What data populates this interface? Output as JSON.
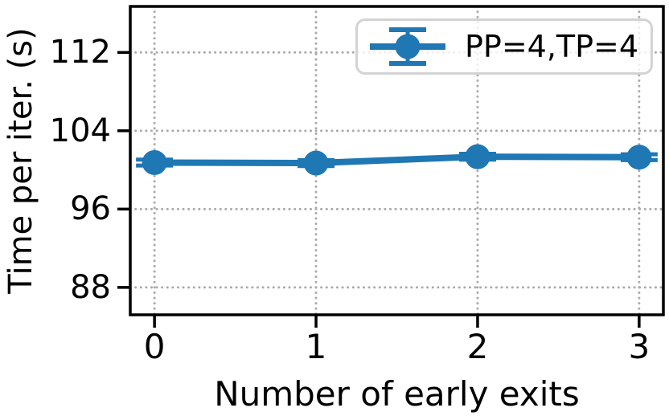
{
  "figure": {
    "background": "#ffffff",
    "text_color": "#000000",
    "spine_color": "#000000"
  },
  "chart_data": {
    "type": "line",
    "title": "",
    "xlabel": "Number of early exits",
    "ylabel": "Time per iter. (s)",
    "x": [
      0,
      1,
      2,
      3
    ],
    "series": [
      {
        "name": "PP=4,TP=4",
        "color": "#1f77b4",
        "values": [
          100.75,
          100.7,
          101.35,
          101.3
        ],
        "yerr": [
          0.3,
          0.3,
          0.3,
          0.3
        ]
      }
    ],
    "xticks": [
      "0",
      "1",
      "2",
      "3"
    ],
    "xtick_values": [
      0,
      1,
      2,
      3
    ],
    "yticks": [
      "88",
      "96",
      "104",
      "112"
    ],
    "ytick_values": [
      88,
      96,
      104,
      112
    ],
    "xlim": [
      -0.15,
      3.15
    ],
    "ylim": [
      85.2,
      116.7
    ],
    "grid": "dotted",
    "grid_color": "#ababab",
    "legend": {
      "position": "upper right",
      "entries": [
        "PP=4,TP=4"
      ]
    }
  }
}
